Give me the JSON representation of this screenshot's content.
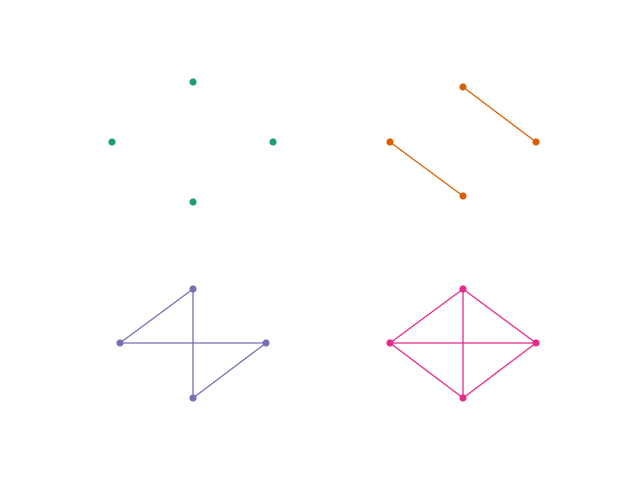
{
  "graphs": [
    {
      "id": "graph-1",
      "color": "#1b9e77",
      "nodes": [
        "top",
        "left",
        "right",
        "bottom"
      ],
      "edges": []
    },
    {
      "id": "graph-2",
      "color": "#d95f02",
      "nodes": [
        "top",
        "left",
        "right",
        "bottom"
      ],
      "edges": [
        [
          "top",
          "right"
        ],
        [
          "left",
          "bottom"
        ]
      ]
    },
    {
      "id": "graph-3",
      "color": "#7570b3",
      "nodes": [
        "top",
        "left",
        "right",
        "bottom"
      ],
      "edges": [
        [
          "top",
          "left"
        ],
        [
          "top",
          "bottom"
        ],
        [
          "left",
          "right"
        ],
        [
          "right",
          "bottom"
        ]
      ]
    },
    {
      "id": "graph-4",
      "color": "#e7298a",
      "nodes": [
        "top",
        "left",
        "right",
        "bottom"
      ],
      "edges": [
        [
          "top",
          "left"
        ],
        [
          "top",
          "right"
        ],
        [
          "top",
          "bottom"
        ],
        [
          "left",
          "right"
        ],
        [
          "left",
          "bottom"
        ],
        [
          "right",
          "bottom"
        ]
      ]
    }
  ]
}
